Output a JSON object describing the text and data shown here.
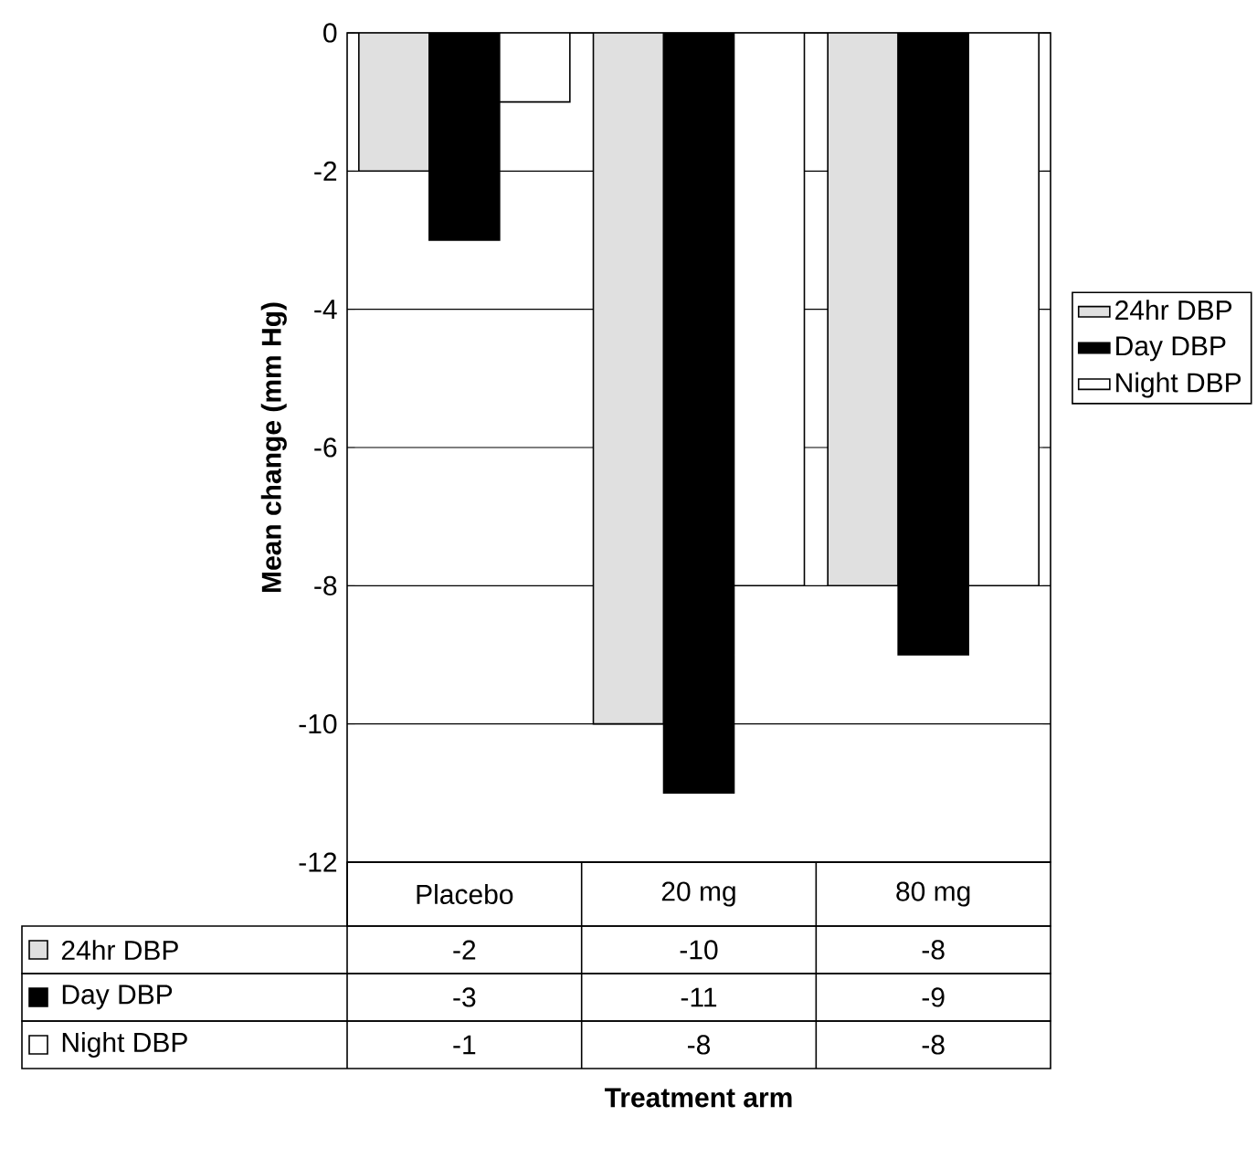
{
  "chart_data": {
    "type": "bar",
    "annotations": [
      "Treatment arm"
    ],
    "ylabel": "Mean change (mm Hg)",
    "categories": [
      "Placebo",
      "20 mg",
      "80 mg"
    ],
    "series": [
      {
        "name": "24hr DBP",
        "color": "#e0e0e0",
        "values": [
          -2,
          -10,
          -8
        ]
      },
      {
        "name": "Day DBP",
        "color": "#000000",
        "values": [
          -3,
          -11,
          -9
        ]
      },
      {
        "name": "Night DBP",
        "color": "#ffffff",
        "values": [
          -1,
          -8,
          -8
        ]
      }
    ],
    "ylim": [
      -12,
      0
    ],
    "yticks": [
      -12,
      -10,
      -8,
      -6,
      -4,
      -2,
      0
    ],
    "grid": "y",
    "legend": "right",
    "data_labels": true
  }
}
